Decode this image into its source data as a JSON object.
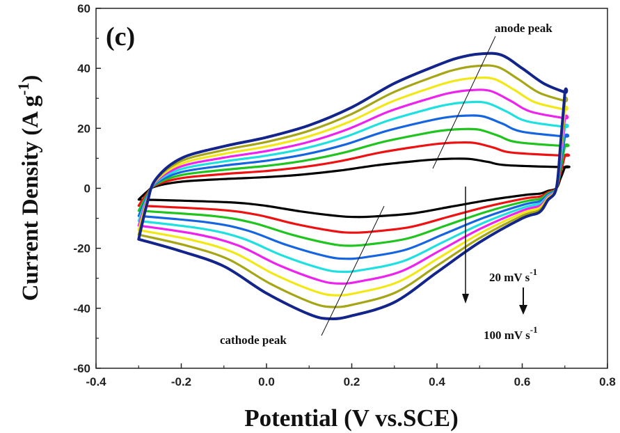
{
  "chart_data": {
    "type": "line",
    "panel_label": "(c)",
    "xlabel": "Potential (V vs.SCE)",
    "ylabel": "Current Density (A g",
    "ylabel_sup": "-1",
    "ylabel_close": ")",
    "xlim": [
      -0.4,
      0.8
    ],
    "ylim": [
      -60,
      60
    ],
    "x_ticks": [
      -0.4,
      -0.2,
      0.0,
      0.2,
      0.4,
      0.6,
      0.8
    ],
    "x_tick_labels": [
      "-0.4",
      "-0.2",
      "0.0",
      "0.2",
      "0.4",
      "0.6",
      "0.8"
    ],
    "y_ticks": [
      -60,
      -40,
      -20,
      0,
      20,
      40,
      60
    ],
    "y_tick_labels": [
      "-60",
      "-40",
      "-20",
      "0",
      "20",
      "40",
      "60"
    ],
    "grid": false,
    "annotations": {
      "anode": "anode peak",
      "cathode": "cathode peak",
      "rate_low": "20 mV s",
      "rate_high": "100 mV s",
      "rate_sup": "-1"
    },
    "series": [
      {
        "color": "#000000",
        "scale": 0.22
      },
      {
        "color": "#ee1111",
        "scale": 0.34
      },
      {
        "color": "#1fc41f",
        "scale": 0.44
      },
      {
        "color": "#1565e0",
        "scale": 0.54
      },
      {
        "color": "#1fe0e0",
        "scale": 0.64
      },
      {
        "color": "#ee22ee",
        "scale": 0.73
      },
      {
        "color": "#f2e818",
        "scale": 0.82
      },
      {
        "color": "#a5a516",
        "scale": 0.91
      },
      {
        "color": "#13258a",
        "scale": 1.0
      }
    ],
    "outer_curve": {
      "anodic_x": [
        -0.3,
        -0.28,
        -0.26,
        -0.2,
        -0.1,
        0.0,
        0.1,
        0.2,
        0.3,
        0.4,
        0.45,
        0.5,
        0.55,
        0.6,
        0.65,
        0.7
      ],
      "anodic_y": [
        -17,
        -5,
        3,
        10,
        14,
        17,
        21,
        27,
        35,
        41,
        43.5,
        44.8,
        44.5,
        40,
        35,
        32
      ],
      "cathodic_x": [
        0.7,
        0.69,
        0.68,
        0.66,
        0.64,
        0.6,
        0.5,
        0.4,
        0.3,
        0.2,
        0.15,
        0.1,
        0.0,
        -0.1,
        -0.2,
        -0.3
      ],
      "cathodic_y": [
        32,
        15,
        0,
        -4,
        -8,
        -10,
        -18,
        -28,
        -38,
        -42.5,
        -43.5,
        -42,
        -35,
        -26,
        -21,
        -17
      ]
    }
  }
}
